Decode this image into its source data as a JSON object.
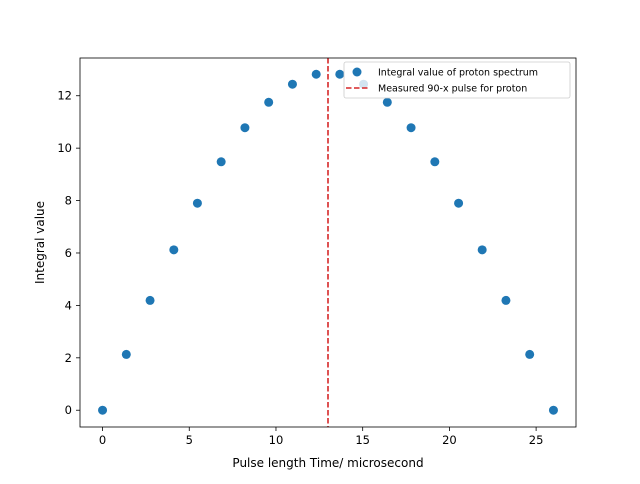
{
  "chart_data": {
    "type": "scatter",
    "xlabel": "Pulse length Time/ microsecond",
    "ylabel": "Integral value",
    "xlim": [
      -1.3,
      27.3
    ],
    "ylim": [
      -0.64,
      13.44
    ],
    "xticks": [
      0,
      5,
      10,
      15,
      20,
      25
    ],
    "yticks": [
      0,
      2,
      4,
      6,
      8,
      10,
      12
    ],
    "grid": false,
    "legend_position": "top-right",
    "series": [
      {
        "name": "Integral value of proton spectrum",
        "color": "#1f77b4",
        "marker": "circle",
        "x": [
          0,
          1.37,
          2.74,
          4.11,
          5.47,
          6.84,
          8.21,
          9.58,
          10.95,
          12.32,
          13.68,
          15.05,
          16.42,
          17.79,
          19.16,
          20.53,
          21.89,
          23.26,
          24.63,
          26.0
        ],
        "y": [
          0.0,
          2.13,
          4.19,
          6.12,
          7.9,
          9.48,
          10.78,
          11.75,
          12.44,
          12.82,
          12.82,
          12.44,
          11.75,
          10.78,
          9.48,
          7.9,
          6.12,
          4.19,
          2.13,
          0.0
        ]
      }
    ],
    "vlines": [
      {
        "name": "Measured 90-x pulse for proton",
        "x": 13.0,
        "color": "#d62728",
        "style": "dashed"
      }
    ]
  }
}
